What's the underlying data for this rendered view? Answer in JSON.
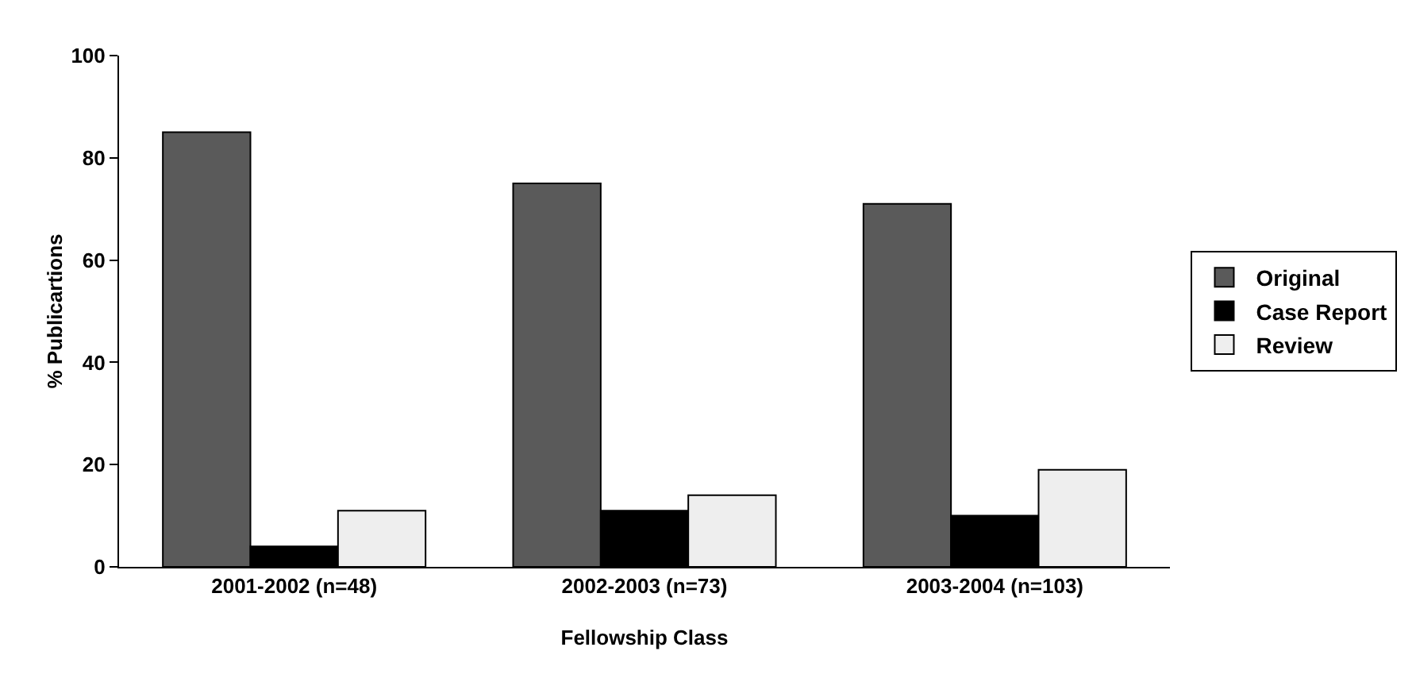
{
  "chart_data": {
    "type": "bar",
    "xlabel": "Fellowship Class",
    "ylabel": "% Publicartions",
    "categories": [
      "2001-2002 (n=48)",
      "2002-2003 (n=73)",
      "2003-2004 (n=103)"
    ],
    "series": [
      {
        "name": "Original",
        "color": "#5a5a5a",
        "values": [
          85,
          75,
          71
        ]
      },
      {
        "name": "Case Report",
        "color": "#000000",
        "values": [
          4,
          11,
          10
        ]
      },
      {
        "name": "Review",
        "color": "#eeeeee",
        "values": [
          11,
          14,
          19
        ]
      }
    ],
    "ylim": [
      0,
      100
    ],
    "yticks": [
      0,
      20,
      40,
      60,
      80,
      100
    ],
    "grid": false,
    "legend": "right"
  }
}
